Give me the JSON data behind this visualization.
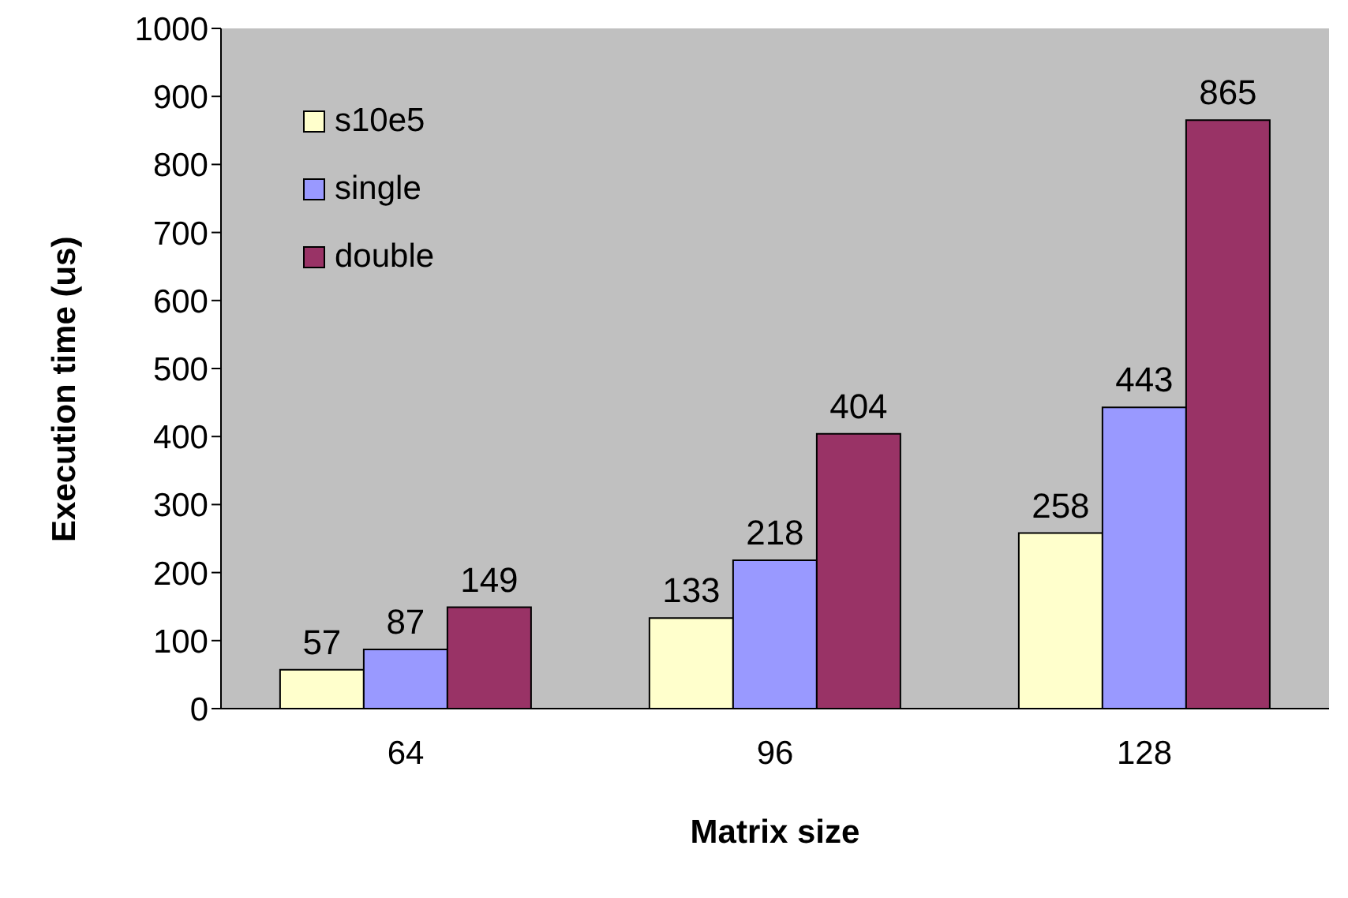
{
  "chart_data": {
    "type": "bar",
    "xlabel": "Matrix size",
    "ylabel": "Execution time (us)",
    "categories": [
      "64",
      "96",
      "128"
    ],
    "series": [
      {
        "name": "s10e5",
        "color": "#ffffcc",
        "values": [
          57,
          133,
          258
        ]
      },
      {
        "name": "single",
        "color": "#9999ff",
        "values": [
          87,
          218,
          443
        ]
      },
      {
        "name": "double",
        "color": "#993366",
        "values": [
          149,
          404,
          865
        ]
      }
    ],
    "ylim": [
      0,
      1000
    ],
    "yticks": [
      0,
      100,
      200,
      300,
      400,
      500,
      600,
      700,
      800,
      900,
      1000
    ],
    "data_labels": true,
    "legend": "top left"
  }
}
